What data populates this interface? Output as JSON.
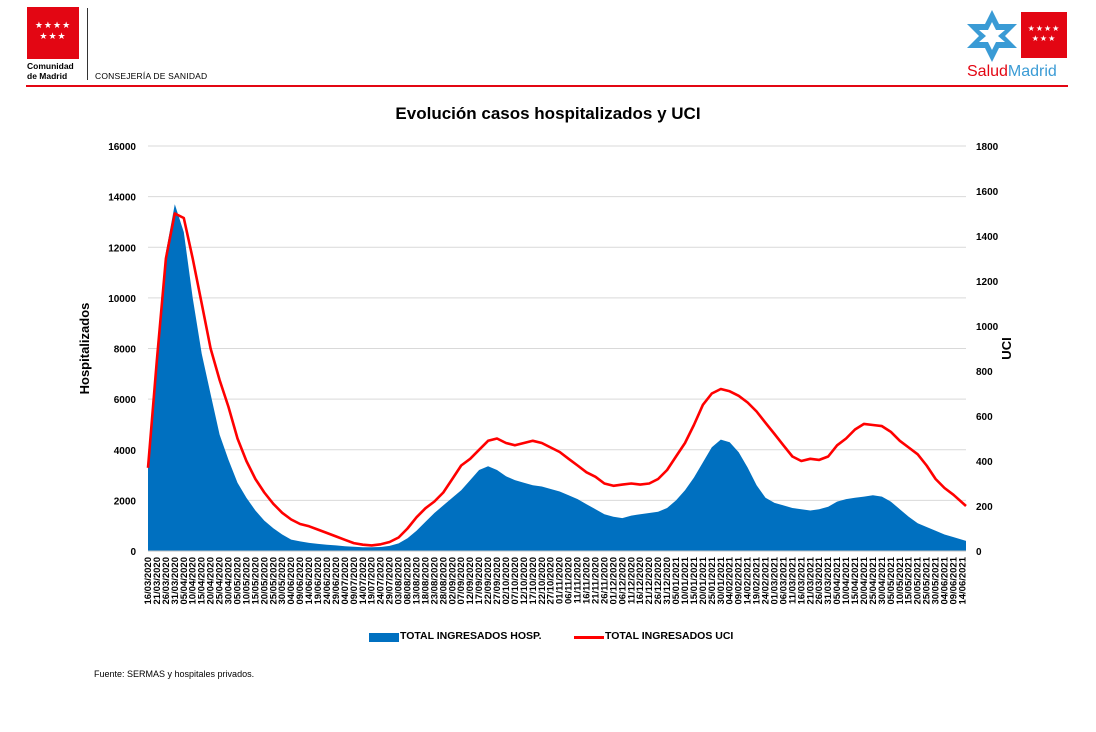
{
  "header": {
    "org_line1": "Comunidad",
    "org_line2": "de Madrid",
    "department": "CONSEJERÍA DE SANIDAD",
    "brand_salud": "Salud",
    "brand_madrid": "Madrid",
    "colors": {
      "red": "#e30613",
      "blue": "#3a9bd5"
    }
  },
  "footer": {
    "source": "Fuente: SERMAS y hospitales privados."
  },
  "chart_data": {
    "type": "area",
    "title": "Evolución casos hospitalizados y UCI",
    "ylabel": "Hospitalizados",
    "y2label": "UCI",
    "ylim": [
      0,
      16000
    ],
    "y2lim": [
      0,
      1800
    ],
    "yticks": [
      0,
      2000,
      4000,
      6000,
      8000,
      10000,
      12000,
      14000,
      16000
    ],
    "y2ticks": [
      0,
      200,
      400,
      600,
      800,
      1000,
      1200,
      1400,
      1600,
      1800
    ],
    "grid": true,
    "legend_position": "bottom",
    "x_start": "2020-03-16",
    "x_end": "2021-06-16",
    "x_tick_labels": [
      "16/03/2020",
      "21/03/2020",
      "26/03/2020",
      "31/03/2020",
      "05/04/2020",
      "10/04/2020",
      "15/04/2020",
      "20/04/2020",
      "25/04/2020",
      "30/04/2020",
      "05/05/2020",
      "10/05/2020",
      "15/05/2020",
      "20/05/2020",
      "25/05/2020",
      "30/05/2020",
      "04/06/2020",
      "09/06/2020",
      "14/06/2020",
      "19/06/2020",
      "24/06/2020",
      "29/06/2020",
      "04/07/2020",
      "09/07/2020",
      "14/07/2020",
      "19/07/2020",
      "24/07/2020",
      "29/07/2020",
      "03/08/2020",
      "08/08/2020",
      "13/08/2020",
      "18/08/2020",
      "23/08/2020",
      "28/08/2020",
      "02/09/2020",
      "07/09/2020",
      "12/09/2020",
      "17/09/2020",
      "22/09/2020",
      "27/09/2020",
      "02/10/2020",
      "07/10/2020",
      "12/10/2020",
      "17/10/2020",
      "22/10/2020",
      "27/10/2020",
      "01/11/2020",
      "06/11/2020",
      "11/11/2020",
      "16/11/2020",
      "21/11/2020",
      "26/11/2020",
      "01/12/2020",
      "06/12/2020",
      "11/12/2020",
      "16/12/2020",
      "21/12/2020",
      "26/12/2020",
      "31/12/2020",
      "05/01/2021",
      "10/01/2021",
      "15/01/2021",
      "20/01/2021",
      "25/01/2021",
      "30/01/2021",
      "04/02/2021",
      "09/02/2021",
      "14/02/2021",
      "19/02/2021",
      "24/02/2021",
      "01/03/2021",
      "06/03/2021",
      "11/03/2021",
      "16/03/2021",
      "21/03/2021",
      "26/03/2021",
      "31/03/2021",
      "05/04/2021",
      "10/04/2021",
      "15/04/2021",
      "20/04/2021",
      "25/04/2021",
      "30/04/2021",
      "05/05/2021",
      "10/05/2021",
      "15/05/2021",
      "20/05/2021",
      "25/05/2021",
      "30/05/2021",
      "04/06/2021",
      "09/06/2021",
      "14/06/2021"
    ],
    "series": [
      {
        "name": "TOTAL INGRESADOS HOSP.",
        "axis": "left",
        "type": "area",
        "color": "#0070c0",
        "points": [
          [
            "2020-03-16",
            3400
          ],
          [
            "2020-03-21",
            7800
          ],
          [
            "2020-03-26",
            11800
          ],
          [
            "2020-03-31",
            13700
          ],
          [
            "2020-04-05",
            12600
          ],
          [
            "2020-04-10",
            10000
          ],
          [
            "2020-04-15",
            7800
          ],
          [
            "2020-04-20",
            6200
          ],
          [
            "2020-04-25",
            4600
          ],
          [
            "2020-04-30",
            3600
          ],
          [
            "2020-05-05",
            2700
          ],
          [
            "2020-05-10",
            2100
          ],
          [
            "2020-05-15",
            1600
          ],
          [
            "2020-05-20",
            1200
          ],
          [
            "2020-05-25",
            900
          ],
          [
            "2020-05-30",
            650
          ],
          [
            "2020-06-04",
            450
          ],
          [
            "2020-06-09",
            380
          ],
          [
            "2020-06-14",
            320
          ],
          [
            "2020-06-19",
            280
          ],
          [
            "2020-06-24",
            250
          ],
          [
            "2020-06-29",
            220
          ],
          [
            "2020-07-04",
            190
          ],
          [
            "2020-07-09",
            170
          ],
          [
            "2020-07-14",
            150
          ],
          [
            "2020-07-19",
            150
          ],
          [
            "2020-07-24",
            160
          ],
          [
            "2020-07-29",
            200
          ],
          [
            "2020-08-03",
            300
          ],
          [
            "2020-08-08",
            500
          ],
          [
            "2020-08-13",
            800
          ],
          [
            "2020-08-18",
            1150
          ],
          [
            "2020-08-23",
            1500
          ],
          [
            "2020-08-28",
            1800
          ],
          [
            "2020-09-02",
            2100
          ],
          [
            "2020-09-07",
            2400
          ],
          [
            "2020-09-12",
            2800
          ],
          [
            "2020-09-17",
            3200
          ],
          [
            "2020-09-22",
            3350
          ],
          [
            "2020-09-27",
            3200
          ],
          [
            "2020-10-02",
            2950
          ],
          [
            "2020-10-07",
            2800
          ],
          [
            "2020-10-12",
            2700
          ],
          [
            "2020-10-17",
            2600
          ],
          [
            "2020-10-22",
            2550
          ],
          [
            "2020-10-27",
            2450
          ],
          [
            "2020-11-01",
            2350
          ],
          [
            "2020-11-06",
            2200
          ],
          [
            "2020-11-11",
            2050
          ],
          [
            "2020-11-16",
            1850
          ],
          [
            "2020-11-21",
            1650
          ],
          [
            "2020-11-26",
            1450
          ],
          [
            "2020-12-01",
            1350
          ],
          [
            "2020-12-06",
            1300
          ],
          [
            "2020-12-11",
            1400
          ],
          [
            "2020-12-16",
            1450
          ],
          [
            "2020-12-21",
            1500
          ],
          [
            "2020-12-26",
            1550
          ],
          [
            "2020-12-31",
            1700
          ],
          [
            "2021-01-05",
            2000
          ],
          [
            "2021-01-10",
            2400
          ],
          [
            "2021-01-15",
            2900
          ],
          [
            "2021-01-20",
            3500
          ],
          [
            "2021-01-25",
            4100
          ],
          [
            "2021-01-30",
            4400
          ],
          [
            "2021-02-04",
            4300
          ],
          [
            "2021-02-09",
            3900
          ],
          [
            "2021-02-14",
            3300
          ],
          [
            "2021-02-19",
            2600
          ],
          [
            "2021-02-24",
            2100
          ],
          [
            "2021-03-01",
            1900
          ],
          [
            "2021-03-06",
            1800
          ],
          [
            "2021-03-11",
            1700
          ],
          [
            "2021-03-16",
            1650
          ],
          [
            "2021-03-21",
            1600
          ],
          [
            "2021-03-26",
            1650
          ],
          [
            "2021-03-31",
            1750
          ],
          [
            "2021-04-05",
            1950
          ],
          [
            "2021-04-10",
            2050
          ],
          [
            "2021-04-15",
            2100
          ],
          [
            "2021-04-20",
            2150
          ],
          [
            "2021-04-25",
            2200
          ],
          [
            "2021-04-30",
            2150
          ],
          [
            "2021-05-05",
            1950
          ],
          [
            "2021-05-10",
            1650
          ],
          [
            "2021-05-15",
            1350
          ],
          [
            "2021-05-20",
            1100
          ],
          [
            "2021-05-25",
            950
          ],
          [
            "2021-05-30",
            800
          ],
          [
            "2021-06-04",
            650
          ],
          [
            "2021-06-09",
            550
          ],
          [
            "2021-06-16",
            400
          ]
        ]
      },
      {
        "name": "TOTAL INGRESADOS UCI",
        "axis": "right",
        "type": "line",
        "color": "#ff0000",
        "points": [
          [
            "2020-03-16",
            370
          ],
          [
            "2020-03-21",
            850
          ],
          [
            "2020-03-26",
            1300
          ],
          [
            "2020-03-31",
            1500
          ],
          [
            "2020-04-05",
            1480
          ],
          [
            "2020-04-10",
            1300
          ],
          [
            "2020-04-15",
            1100
          ],
          [
            "2020-04-20",
            900
          ],
          [
            "2020-04-25",
            760
          ],
          [
            "2020-04-30",
            640
          ],
          [
            "2020-05-05",
            500
          ],
          [
            "2020-05-10",
            400
          ],
          [
            "2020-05-15",
            320
          ],
          [
            "2020-05-20",
            260
          ],
          [
            "2020-05-25",
            210
          ],
          [
            "2020-05-30",
            170
          ],
          [
            "2020-06-04",
            140
          ],
          [
            "2020-06-09",
            120
          ],
          [
            "2020-06-14",
            110
          ],
          [
            "2020-06-19",
            95
          ],
          [
            "2020-06-24",
            80
          ],
          [
            "2020-06-29",
            65
          ],
          [
            "2020-07-04",
            50
          ],
          [
            "2020-07-09",
            35
          ],
          [
            "2020-07-14",
            28
          ],
          [
            "2020-07-19",
            25
          ],
          [
            "2020-07-24",
            30
          ],
          [
            "2020-07-29",
            40
          ],
          [
            "2020-08-03",
            60
          ],
          [
            "2020-08-08",
            100
          ],
          [
            "2020-08-13",
            150
          ],
          [
            "2020-08-18",
            190
          ],
          [
            "2020-08-23",
            220
          ],
          [
            "2020-08-28",
            260
          ],
          [
            "2020-09-02",
            320
          ],
          [
            "2020-09-07",
            380
          ],
          [
            "2020-09-12",
            410
          ],
          [
            "2020-09-17",
            450
          ],
          [
            "2020-09-22",
            490
          ],
          [
            "2020-09-27",
            500
          ],
          [
            "2020-10-02",
            480
          ],
          [
            "2020-10-07",
            470
          ],
          [
            "2020-10-12",
            480
          ],
          [
            "2020-10-17",
            490
          ],
          [
            "2020-10-22",
            480
          ],
          [
            "2020-10-27",
            460
          ],
          [
            "2020-11-01",
            440
          ],
          [
            "2020-11-06",
            410
          ],
          [
            "2020-11-11",
            380
          ],
          [
            "2020-11-16",
            350
          ],
          [
            "2020-11-21",
            330
          ],
          [
            "2020-11-26",
            300
          ],
          [
            "2020-12-01",
            290
          ],
          [
            "2020-12-06",
            295
          ],
          [
            "2020-12-11",
            300
          ],
          [
            "2020-12-16",
            295
          ],
          [
            "2020-12-21",
            300
          ],
          [
            "2020-12-26",
            320
          ],
          [
            "2020-12-31",
            360
          ],
          [
            "2021-01-05",
            420
          ],
          [
            "2021-01-10",
            480
          ],
          [
            "2021-01-15",
            560
          ],
          [
            "2021-01-20",
            650
          ],
          [
            "2021-01-25",
            700
          ],
          [
            "2021-01-30",
            720
          ],
          [
            "2021-02-04",
            710
          ],
          [
            "2021-02-09",
            690
          ],
          [
            "2021-02-14",
            660
          ],
          [
            "2021-02-19",
            620
          ],
          [
            "2021-02-24",
            570
          ],
          [
            "2021-03-01",
            520
          ],
          [
            "2021-03-06",
            470
          ],
          [
            "2021-03-11",
            420
          ],
          [
            "2021-03-16",
            400
          ],
          [
            "2021-03-21",
            410
          ],
          [
            "2021-03-26",
            405
          ],
          [
            "2021-03-31",
            420
          ],
          [
            "2021-04-05",
            470
          ],
          [
            "2021-04-10",
            500
          ],
          [
            "2021-04-15",
            540
          ],
          [
            "2021-04-20",
            565
          ],
          [
            "2021-04-25",
            560
          ],
          [
            "2021-04-30",
            555
          ],
          [
            "2021-05-05",
            530
          ],
          [
            "2021-05-10",
            490
          ],
          [
            "2021-05-15",
            460
          ],
          [
            "2021-05-20",
            430
          ],
          [
            "2021-05-25",
            380
          ],
          [
            "2021-05-30",
            320
          ],
          [
            "2021-06-04",
            280
          ],
          [
            "2021-06-09",
            250
          ],
          [
            "2021-06-16",
            200
          ]
        ]
      }
    ]
  }
}
